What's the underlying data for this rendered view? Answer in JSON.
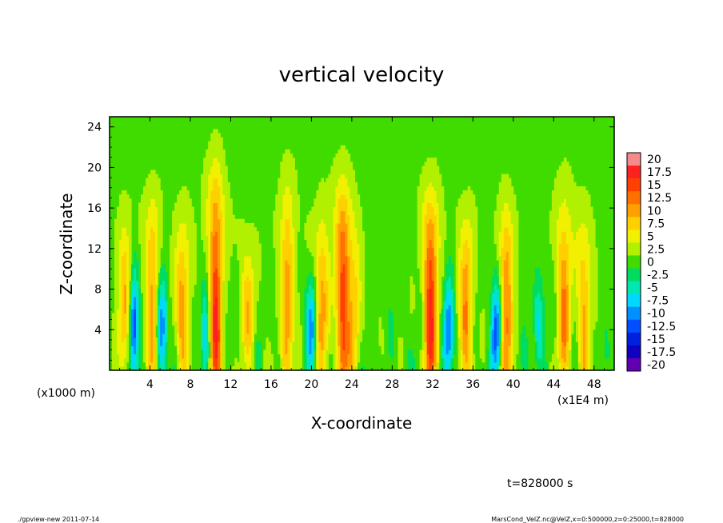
{
  "chart_data": {
    "type": "heatmap",
    "title": "vertical velocity",
    "xlabel": "X-coordinate",
    "ylabel": "Z-coordinate",
    "x_unit_left": "(x1000 m)",
    "x_unit_right": "(x1E4 m)",
    "xlim": [
      0,
      50
    ],
    "ylim": [
      0,
      25
    ],
    "x_ticks": [
      "4",
      "8",
      "12",
      "16",
      "20",
      "24",
      "28",
      "32",
      "36",
      "40",
      "44",
      "48"
    ],
    "y_ticks": [
      "4",
      "8",
      "12",
      "16",
      "20",
      "24"
    ],
    "colorbar_labels": [
      "20",
      "17.5",
      "15",
      "12.5",
      "10",
      "7.5",
      "5",
      "2.5",
      "0",
      "-2.5",
      "-5",
      "-7.5",
      "-10",
      "-12.5",
      "-15",
      "-17.5",
      "-20"
    ],
    "colorbar_colors": [
      "#f48a8a",
      "#ff2020",
      "#ff4000",
      "#ff7000",
      "#ffa000",
      "#ffd000",
      "#f0f000",
      "#b0f000",
      "#40dc00",
      "#00dc60",
      "#00e8b0",
      "#00d8ff",
      "#0090ff",
      "#0050ff",
      "#0020e0",
      "#1000c0",
      "#6000b0"
    ],
    "updrafts": [
      {
        "x": 1.5,
        "amp": 9,
        "top": 9
      },
      {
        "x": 4.2,
        "amp": 10,
        "top": 11
      },
      {
        "x": 7.2,
        "amp": 10,
        "top": 9
      },
      {
        "x": 10.5,
        "amp": 17,
        "top": 13
      },
      {
        "x": 13.7,
        "amp": 7,
        "top": 8
      },
      {
        "x": 17.6,
        "amp": 11,
        "top": 12
      },
      {
        "x": 21.0,
        "amp": 10,
        "top": 9
      },
      {
        "x": 23.1,
        "amp": 15,
        "top": 12
      },
      {
        "x": 24.2,
        "amp": 7,
        "top": 8
      },
      {
        "x": 31.8,
        "amp": 17,
        "top": 11
      },
      {
        "x": 35.3,
        "amp": 11,
        "top": 9
      },
      {
        "x": 39.3,
        "amp": 12,
        "top": 10
      },
      {
        "x": 45.0,
        "amp": 11,
        "top": 11
      },
      {
        "x": 47.0,
        "amp": 9,
        "top": 9
      }
    ],
    "downdrafts": [
      {
        "x": 2.4,
        "amp": 14,
        "top": 8
      },
      {
        "x": 5.2,
        "amp": 12,
        "top": 7
      },
      {
        "x": 9.5,
        "amp": 7,
        "top": 7
      },
      {
        "x": 20.0,
        "amp": 11,
        "top": 7
      },
      {
        "x": 33.6,
        "amp": 12,
        "top": 7
      },
      {
        "x": 38.3,
        "amp": 13,
        "top": 7
      },
      {
        "x": 42.5,
        "amp": 7,
        "top": 6
      }
    ]
  },
  "annotations": {
    "time": "t=828000 s",
    "footer_left": "./gpview-new 2011-07-14",
    "footer_right": "MarsCond_VelZ.nc@VelZ,x=0:500000,z=0:25000,t=828000"
  }
}
